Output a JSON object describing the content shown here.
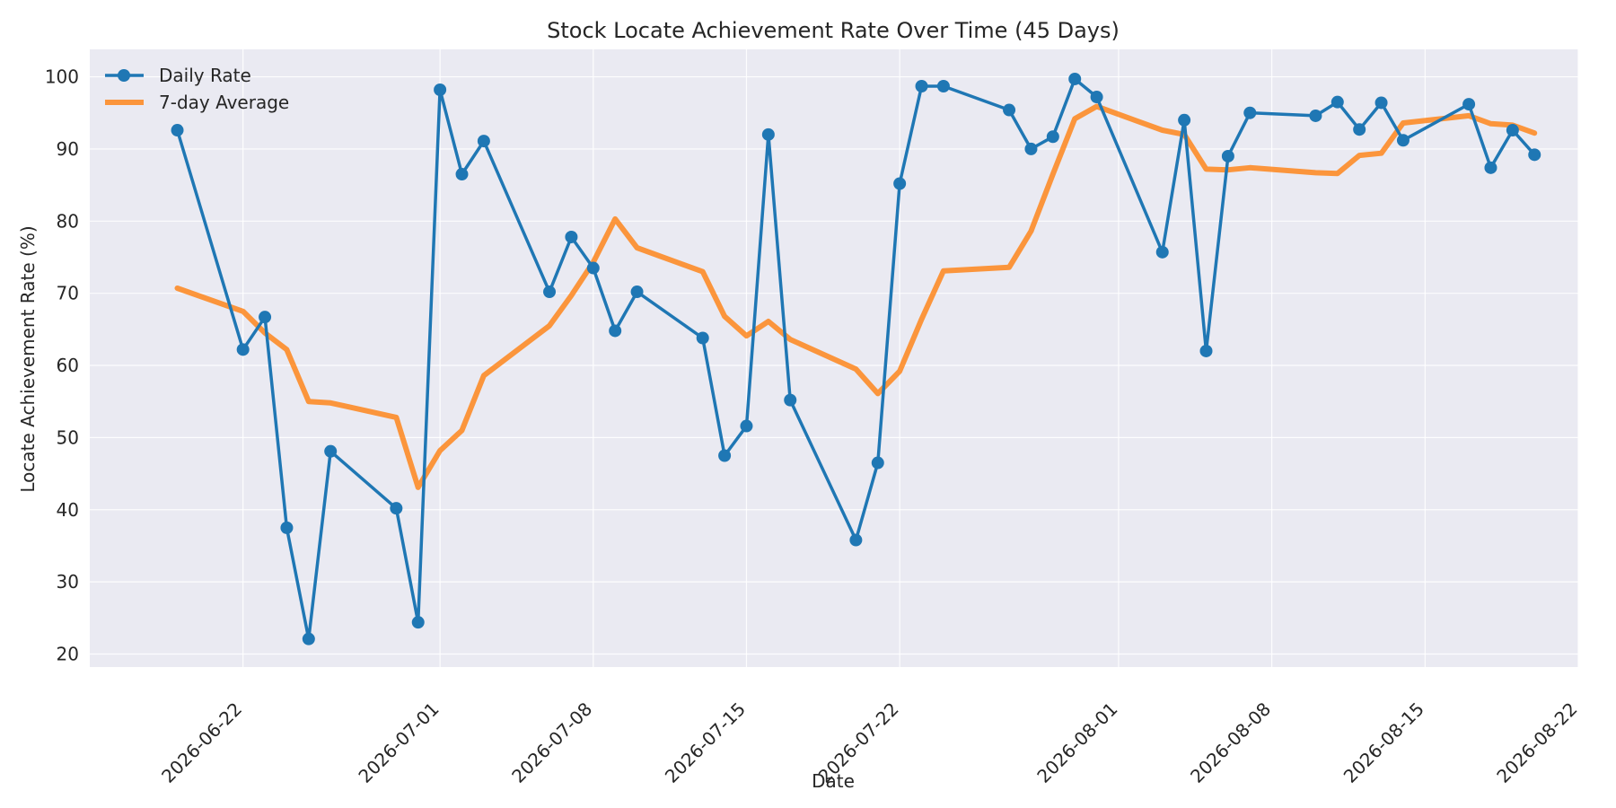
{
  "chart_data": {
    "type": "line",
    "title": "Stock Locate Achievement Rate Over Time (45 Days)",
    "xlabel": "Date",
    "ylabel": "Locate Achievement Rate (%)",
    "ylim": [
      18.2,
      103.8
    ],
    "xlim": [
      "2026-06-15",
      "2026-08-22"
    ],
    "grid": true,
    "legend_position": "top-left",
    "x_ticks": [
      "2026-06-22",
      "2026-07-01",
      "2026-07-08",
      "2026-07-15",
      "2026-07-22",
      "2026-08-01",
      "2026-08-08",
      "2026-08-15",
      "2026-08-22"
    ],
    "y_ticks": [
      20,
      30,
      40,
      50,
      60,
      70,
      80,
      90,
      100
    ],
    "series": [
      {
        "name": "Daily Rate",
        "color": "#1f77b4",
        "marker": "circle",
        "x": [
          "2026-06-19",
          "2026-06-22",
          "2026-06-23",
          "2026-06-24",
          "2026-06-25",
          "2026-06-26",
          "2026-06-29",
          "2026-06-30",
          "2026-07-01",
          "2026-07-02",
          "2026-07-03",
          "2026-07-06",
          "2026-07-07",
          "2026-07-08",
          "2026-07-09",
          "2026-07-10",
          "2026-07-13",
          "2026-07-14",
          "2026-07-15",
          "2026-07-16",
          "2026-07-17",
          "2026-07-20",
          "2026-07-21",
          "2026-07-22",
          "2026-07-23",
          "2026-07-24",
          "2026-07-27",
          "2026-07-28",
          "2026-07-29",
          "2026-07-30",
          "2026-07-31",
          "2026-08-03",
          "2026-08-04",
          "2026-08-05",
          "2026-08-06",
          "2026-08-07",
          "2026-08-10",
          "2026-08-11",
          "2026-08-12",
          "2026-08-13",
          "2026-08-14",
          "2026-08-17",
          "2026-08-18",
          "2026-08-19",
          "2026-08-20"
        ],
        "values": [
          92.6,
          62.2,
          66.7,
          37.5,
          22.1,
          48.1,
          40.2,
          24.4,
          98.2,
          86.5,
          91.1,
          70.2,
          77.8,
          73.5,
          64.8,
          70.2,
          63.8,
          47.5,
          51.6,
          92.0,
          55.2,
          35.8,
          46.5,
          85.2,
          98.7,
          98.7,
          95.4,
          90.0,
          91.7,
          99.7,
          97.2,
          75.7,
          94.0,
          62.0,
          89.0,
          95.0,
          94.6,
          96.5,
          92.7,
          96.4,
          91.2,
          96.2,
          87.4,
          92.6,
          89.2
        ]
      },
      {
        "name": "7-day Average",
        "color": "#ff7f0e",
        "marker": "none",
        "x": [
          "2026-06-19",
          "2026-06-22",
          "2026-06-23",
          "2026-06-24",
          "2026-06-25",
          "2026-06-26",
          "2026-06-29",
          "2026-06-30",
          "2026-07-01",
          "2026-07-02",
          "2026-07-03",
          "2026-07-06",
          "2026-07-07",
          "2026-07-08",
          "2026-07-09",
          "2026-07-10",
          "2026-07-13",
          "2026-07-14",
          "2026-07-15",
          "2026-07-16",
          "2026-07-17",
          "2026-07-20",
          "2026-07-21",
          "2026-07-22",
          "2026-07-23",
          "2026-07-24",
          "2026-07-27",
          "2026-07-28",
          "2026-07-29",
          "2026-07-30",
          "2026-07-31",
          "2026-08-03",
          "2026-08-04",
          "2026-08-05",
          "2026-08-06",
          "2026-08-07",
          "2026-08-10",
          "2026-08-11",
          "2026-08-12",
          "2026-08-13",
          "2026-08-14",
          "2026-08-17",
          "2026-08-18",
          "2026-08-19",
          "2026-08-20"
        ],
        "values": [
          70.7,
          67.5,
          64.5,
          62.2,
          55.0,
          54.8,
          52.8,
          43.1,
          48.2,
          51.0,
          58.6,
          65.5,
          69.7,
          74.3,
          80.3,
          76.3,
          73.0,
          66.8,
          64.1,
          66.1,
          63.6,
          59.5,
          56.1,
          59.2,
          66.4,
          73.1,
          73.6,
          78.6,
          86.5,
          94.2,
          95.9,
          92.6,
          92.0,
          87.2,
          87.1,
          87.4,
          86.7,
          86.6,
          89.1,
          89.4,
          93.6,
          94.6,
          93.5,
          93.3,
          92.2
        ]
      }
    ]
  }
}
